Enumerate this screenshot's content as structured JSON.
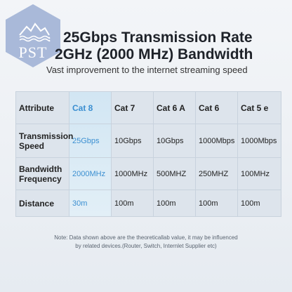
{
  "logo": {
    "text": "PST"
  },
  "header": {
    "title_line1": "25Gbps Transmission Rate",
    "title_line2": "2GHz (2000 MHz) Bandwidth",
    "subtitle": "Vast improvement to the internet streaming speed"
  },
  "table": {
    "columns": [
      "Attribute",
      "Cat 8",
      "Cat 7",
      "Cat 6 A",
      "Cat 6",
      "Cat 5 e"
    ],
    "rows": [
      {
        "attribute": "Transmission Speed",
        "values": [
          "25Gbps",
          "10Gbps",
          "10Gbps",
          "1000Mbps",
          "1000Mbps"
        ]
      },
      {
        "attribute": "Bandwidth Frequency",
        "values": [
          "2000MHz",
          "1000MHz",
          "500MHZ",
          "250MHZ",
          "100MHz"
        ]
      },
      {
        "attribute": "Distance",
        "values": [
          "30m",
          "100m",
          "100m",
          "100m",
          "100m"
        ]
      }
    ]
  },
  "note": {
    "line1": "Note: Data shown above are the theoreticallab value, it may be influenced",
    "line2": "by related devices.(Router, Switch, Internlet Supplier etc)"
  },
  "colors": {
    "highlight": "#3b8fd1",
    "logo_bg": "#a9b9d9"
  }
}
